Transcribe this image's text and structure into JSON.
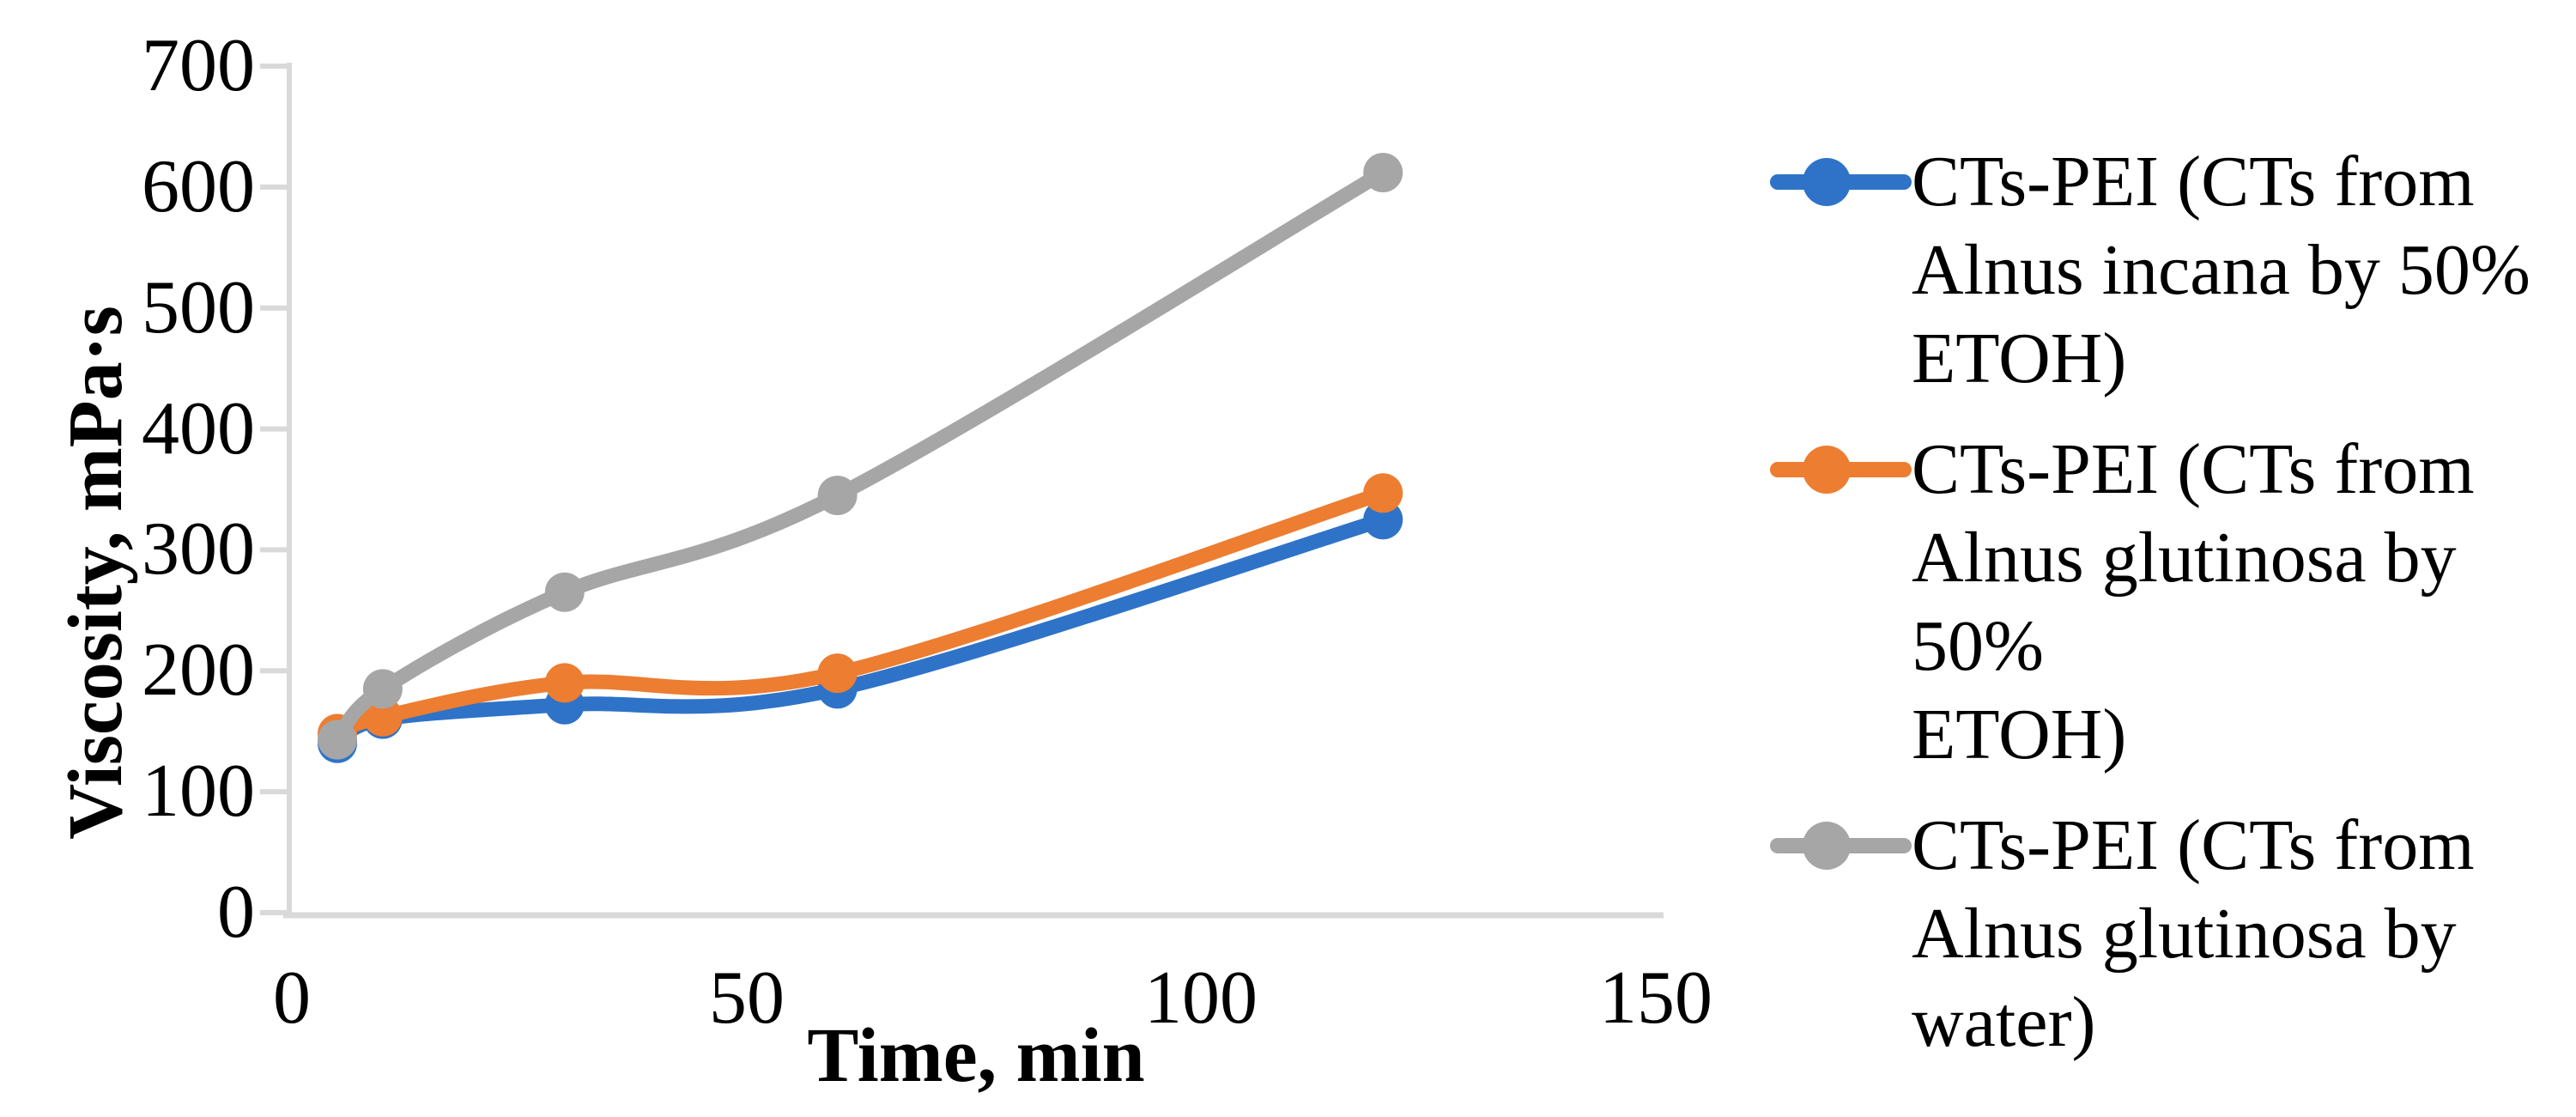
{
  "chart_data": {
    "type": "line",
    "title": "",
    "xlabel": "Time, min",
    "ylabel": "Viscosity, mPa·s",
    "x": [
      5,
      10,
      30,
      60,
      120
    ],
    "series": [
      {
        "name": "CTs-PEI (CTs from Alnus incana by 50% ETOH)",
        "color": "#2E73C8",
        "values": [
          140,
          160,
          172,
          185,
          325
        ]
      },
      {
        "name": "CTs-PEI (CTs from Alnus glutinosa by 50% ETOH)",
        "color": "#ED7D31",
        "values": [
          148,
          162,
          190,
          198,
          347
        ]
      },
      {
        "name": "CTs-PEI (CTs from Alnus glutinosa by water)",
        "color": "#A6A6A6",
        "values": [
          143,
          185,
          265,
          345,
          612
        ]
      }
    ],
    "xlim": [
      0,
      150
    ],
    "ylim": [
      0,
      700
    ],
    "xticks": [
      0,
      50,
      100,
      150
    ],
    "yticks": [
      0,
      100,
      200,
      300,
      400,
      500,
      600,
      700
    ],
    "grid": false,
    "legend_position": "right",
    "legend": [
      {
        "color": "#2E73C8",
        "label_lines": [
          "CTs-PEI (CTs from",
          "Alnus incana by 50%",
          "ETOH)"
        ]
      },
      {
        "color": "#ED7D31",
        "label_lines": [
          "CTs-PEI (CTs from",
          "Alnus glutinosa by 50%",
          "ETOH)"
        ]
      },
      {
        "color": "#A6A6A6",
        "label_lines": [
          "CTs-PEI (CTs from",
          "Alnus glutinosa by",
          "water)"
        ]
      }
    ],
    "axis_color": "#D9D9D9",
    "marker_shape": "circle"
  }
}
